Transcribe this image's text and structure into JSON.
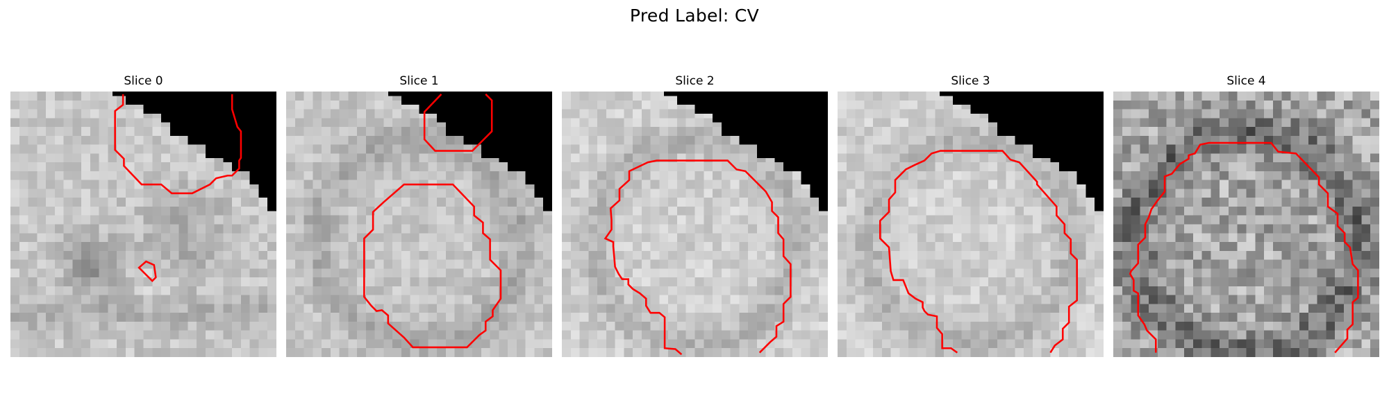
{
  "figure": {
    "title": "Pred Label: CV",
    "overlay_color": "#ff0000"
  },
  "slices": [
    {
      "label": "Slice 0"
    },
    {
      "label": "Slice 1"
    },
    {
      "label": "Slice 2"
    },
    {
      "label": "Slice 3"
    },
    {
      "label": "Slice 4"
    }
  ]
}
